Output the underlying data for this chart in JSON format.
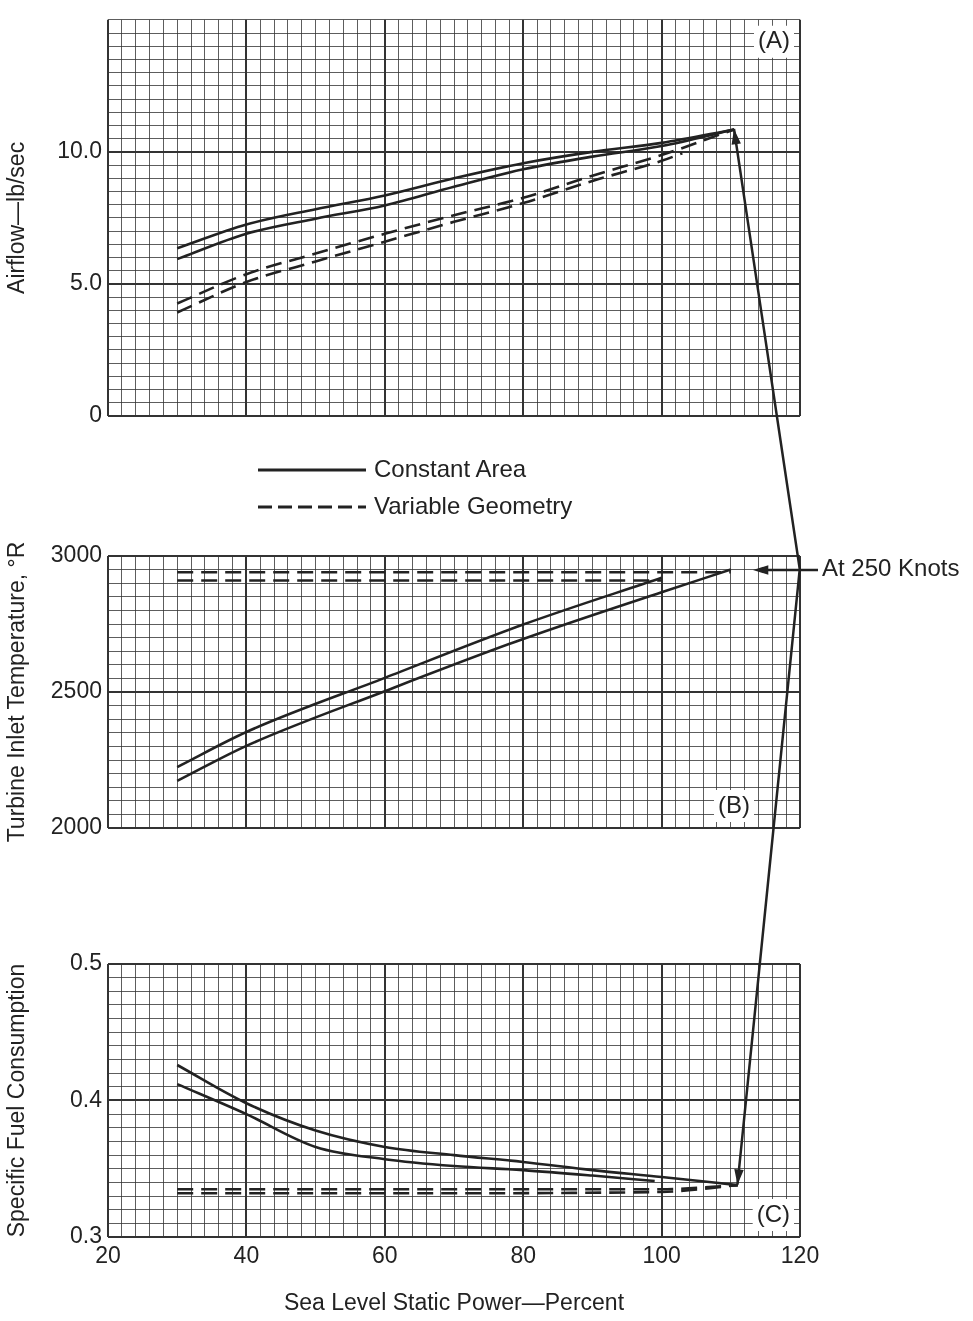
{
  "chart_data": [
    {
      "type": "line",
      "ylabel": "Airflow—lb/sec",
      "legend": "bottom",
      "tick_labels": "y",
      "grid": true,
      "line_style": "solid",
      "xlim": [
        20,
        120
      ],
      "xticks": [
        20,
        {
          "value": 22,
          "label": null
        },
        {
          "value": 24,
          "label": null
        },
        {
          "value": 26,
          "label": null
        },
        {
          "value": 28,
          "label": null
        },
        {
          "value": 30,
          "label": null
        },
        {
          "value": 32,
          "label": null
        },
        {
          "value": 34,
          "label": null
        },
        {
          "value": 36,
          "label": null
        },
        {
          "value": 38,
          "label": null
        },
        40,
        {
          "value": 42,
          "label": null
        },
        {
          "value": 44,
          "label": null
        },
        {
          "value": 46,
          "label": null
        },
        {
          "value": 48,
          "label": null
        },
        {
          "value": 50,
          "label": null
        },
        {
          "value": 52,
          "label": null
        },
        {
          "value": 54,
          "label": null
        },
        {
          "value": 56,
          "label": null
        },
        {
          "value": 58,
          "label": null
        },
        60,
        {
          "value": 62,
          "label": null
        },
        {
          "value": 64,
          "label": null
        },
        {
          "value": 66,
          "label": null
        },
        {
          "value": 68,
          "label": null
        },
        {
          "value": 70,
          "label": null
        },
        {
          "value": 72,
          "label": null
        },
        {
          "value": 74,
          "label": null
        },
        {
          "value": 76,
          "label": null
        },
        {
          "value": 78,
          "label": null
        },
        80,
        {
          "value": 82,
          "label": null
        },
        {
          "value": 84,
          "label": null
        },
        {
          "value": 86,
          "label": null
        },
        {
          "value": 88,
          "label": null
        },
        {
          "value": 90,
          "label": null
        },
        {
          "value": 92,
          "label": null
        },
        {
          "value": 94,
          "label": null
        },
        {
          "value": 96,
          "label": null
        },
        {
          "value": 98,
          "label": null
        },
        100,
        {
          "value": 102,
          "label": null
        },
        {
          "value": 104,
          "label": null
        },
        {
          "value": 106,
          "label": null
        },
        {
          "value": 108,
          "label": null
        },
        {
          "value": 110,
          "label": null
        },
        {
          "value": 112,
          "label": null
        },
        {
          "value": 114,
          "label": null
        },
        {
          "value": 116,
          "label": null
        },
        {
          "value": 118,
          "label": null
        },
        120
      ],
      "ylim": [
        0,
        15
      ],
      "yticks": [
        0,
        {
          "value": 0.5,
          "label": null
        },
        {
          "value": 1,
          "label": null
        },
        {
          "value": 1.5,
          "label": null
        },
        {
          "value": 2,
          "label": null
        },
        {
          "value": 2.5,
          "label": null
        },
        {
          "value": 3,
          "label": null
        },
        {
          "value": 3.5,
          "label": null
        },
        {
          "value": 4,
          "label": null
        },
        {
          "value": 4.5,
          "label": null
        },
        {
          "value": 5,
          "label": "5.0"
        },
        {
          "value": 5.5,
          "label": null
        },
        {
          "value": 6,
          "label": null
        },
        {
          "value": 6.5,
          "label": null
        },
        {
          "value": 7,
          "label": null
        },
        {
          "value": 7.5,
          "label": null
        },
        {
          "value": 8,
          "label": null
        },
        {
          "value": 8.5,
          "label": null
        },
        {
          "value": 9,
          "label": null
        },
        {
          "value": 9.5,
          "label": null
        },
        {
          "value": 10,
          "label": "10.0"
        },
        {
          "value": 10.5,
          "label": null
        },
        {
          "value": 11,
          "label": null
        },
        {
          "value": 11.5,
          "label": null
        },
        {
          "value": 12,
          "label": null
        },
        {
          "value": 12.5,
          "label": null
        },
        {
          "value": 13,
          "label": null
        },
        {
          "value": 13.5,
          "label": null
        },
        {
          "value": 14,
          "label": null
        },
        {
          "value": 14.5,
          "label": null
        },
        {
          "value": 15,
          "label": null
        }
      ],
      "annotations": [
        "(A)"
      ],
      "series": [
        {
          "name": "Constant Area",
          "color": "#222222",
          "x": [
            30,
            40,
            50,
            60,
            70,
            80,
            90,
            100,
            110.5
          ],
          "values": [
            6.35,
            7.25,
            7.83,
            8.35,
            9.0,
            9.57,
            10.0,
            10.34,
            10.85
          ]
        },
        {
          "color": "#222222",
          "x": [
            30,
            40,
            50,
            60,
            70,
            80,
            90,
            100,
            110.5
          ],
          "values": [
            5.94,
            6.9,
            7.47,
            7.97,
            8.68,
            9.34,
            9.82,
            10.22,
            10.85
          ]
        },
        {
          "name": "Variable Geometry",
          "color": "#222222",
          "line_style": "dashed",
          "x": [
            30,
            40,
            50,
            60,
            70,
            80,
            90,
            100,
            110.5
          ],
          "values": [
            4.26,
            5.37,
            6.15,
            6.9,
            7.6,
            8.26,
            9.1,
            9.88,
            10.85
          ]
        },
        {
          "color": "#222222",
          "line_style": "dashed",
          "x": [
            30,
            40,
            50,
            60,
            70,
            80,
            90,
            100,
            103
          ],
          "values": [
            3.92,
            5.07,
            5.85,
            6.6,
            7.35,
            8.06,
            8.9,
            9.66,
            9.95
          ]
        }
      ]
    },
    {
      "type": "line",
      "ylabel": "Turbine Inlet Temperature, °R",
      "tick_labels": "y",
      "grid": true,
      "line_style": "solid",
      "xlim": [
        20,
        120
      ],
      "xticks": [
        20,
        {
          "value": 22,
          "label": null
        },
        {
          "value": 24,
          "label": null
        },
        {
          "value": 26,
          "label": null
        },
        {
          "value": 28,
          "label": null
        },
        {
          "value": 30,
          "label": null
        },
        {
          "value": 32,
          "label": null
        },
        {
          "value": 34,
          "label": null
        },
        {
          "value": 36,
          "label": null
        },
        {
          "value": 38,
          "label": null
        },
        40,
        {
          "value": 42,
          "label": null
        },
        {
          "value": 44,
          "label": null
        },
        {
          "value": 46,
          "label": null
        },
        {
          "value": 48,
          "label": null
        },
        {
          "value": 50,
          "label": null
        },
        {
          "value": 52,
          "label": null
        },
        {
          "value": 54,
          "label": null
        },
        {
          "value": 56,
          "label": null
        },
        {
          "value": 58,
          "label": null
        },
        60,
        {
          "value": 62,
          "label": null
        },
        {
          "value": 64,
          "label": null
        },
        {
          "value": 66,
          "label": null
        },
        {
          "value": 68,
          "label": null
        },
        {
          "value": 70,
          "label": null
        },
        {
          "value": 72,
          "label": null
        },
        {
          "value": 74,
          "label": null
        },
        {
          "value": 76,
          "label": null
        },
        {
          "value": 78,
          "label": null
        },
        80,
        {
          "value": 82,
          "label": null
        },
        {
          "value": 84,
          "label": null
        },
        {
          "value": 86,
          "label": null
        },
        {
          "value": 88,
          "label": null
        },
        {
          "value": 90,
          "label": null
        },
        {
          "value": 92,
          "label": null
        },
        {
          "value": 94,
          "label": null
        },
        {
          "value": 96,
          "label": null
        },
        {
          "value": 98,
          "label": null
        },
        100,
        {
          "value": 102,
          "label": null
        },
        {
          "value": 104,
          "label": null
        },
        {
          "value": 106,
          "label": null
        },
        {
          "value": 108,
          "label": null
        },
        {
          "value": 110,
          "label": null
        },
        {
          "value": 112,
          "label": null
        },
        {
          "value": 114,
          "label": null
        },
        {
          "value": 116,
          "label": null
        },
        {
          "value": 118,
          "label": null
        },
        120
      ],
      "ylim": [
        2000,
        3000
      ],
      "yticks": [
        2000,
        {
          "value": 2050,
          "label": null
        },
        {
          "value": 2100,
          "label": null
        },
        {
          "value": 2150,
          "label": null
        },
        {
          "value": 2200,
          "label": null
        },
        {
          "value": 2250,
          "label": null
        },
        {
          "value": 2300,
          "label": null
        },
        {
          "value": 2350,
          "label": null
        },
        {
          "value": 2400,
          "label": null
        },
        {
          "value": 2450,
          "label": null
        },
        2500,
        {
          "value": 2550,
          "label": null
        },
        {
          "value": 2600,
          "label": null
        },
        {
          "value": 2650,
          "label": null
        },
        {
          "value": 2700,
          "label": null
        },
        {
          "value": 2750,
          "label": null
        },
        {
          "value": 2800,
          "label": null
        },
        {
          "value": 2850,
          "label": null
        },
        {
          "value": 2900,
          "label": null
        },
        {
          "value": 2950,
          "label": null
        },
        3000
      ],
      "annotations": [
        "(B)",
        "At 250 Knots"
      ],
      "series": [
        {
          "color": "#222222",
          "x": [
            30,
            40,
            60,
            80,
            100
          ],
          "values": [
            2224,
            2353,
            2552,
            2748,
            2920
          ]
        },
        {
          "color": "#222222",
          "x": [
            30,
            40,
            60,
            80,
            100,
            110
          ],
          "values": [
            2173,
            2302,
            2503,
            2695,
            2867,
            2950
          ]
        },
        {
          "color": "#222222",
          "line_style": "dashed",
          "x": [
            30,
            110
          ],
          "values": [
            2940,
            2940
          ]
        },
        {
          "color": "#222222",
          "line_style": "dashed",
          "x": [
            30,
            100
          ],
          "values": [
            2910,
            2910
          ]
        }
      ]
    },
    {
      "type": "line",
      "xlabel": "Sea Level Static Power—Percent",
      "ylabel": "Specific Fuel Consumption",
      "grid": true,
      "line_style": "solid",
      "xlim": [
        20,
        120
      ],
      "xticks": [
        20,
        {
          "value": 22,
          "label": null
        },
        {
          "value": 24,
          "label": null
        },
        {
          "value": 26,
          "label": null
        },
        {
          "value": 28,
          "label": null
        },
        {
          "value": 30,
          "label": null
        },
        {
          "value": 32,
          "label": null
        },
        {
          "value": 34,
          "label": null
        },
        {
          "value": 36,
          "label": null
        },
        {
          "value": 38,
          "label": null
        },
        40,
        {
          "value": 42,
          "label": null
        },
        {
          "value": 44,
          "label": null
        },
        {
          "value": 46,
          "label": null
        },
        {
          "value": 48,
          "label": null
        },
        {
          "value": 50,
          "label": null
        },
        {
          "value": 52,
          "label": null
        },
        {
          "value": 54,
          "label": null
        },
        {
          "value": 56,
          "label": null
        },
        {
          "value": 58,
          "label": null
        },
        60,
        {
          "value": 62,
          "label": null
        },
        {
          "value": 64,
          "label": null
        },
        {
          "value": 66,
          "label": null
        },
        {
          "value": 68,
          "label": null
        },
        {
          "value": 70,
          "label": null
        },
        {
          "value": 72,
          "label": null
        },
        {
          "value": 74,
          "label": null
        },
        {
          "value": 76,
          "label": null
        },
        {
          "value": 78,
          "label": null
        },
        80,
        {
          "value": 82,
          "label": null
        },
        {
          "value": 84,
          "label": null
        },
        {
          "value": 86,
          "label": null
        },
        {
          "value": 88,
          "label": null
        },
        {
          "value": 90,
          "label": null
        },
        {
          "value": 92,
          "label": null
        },
        {
          "value": 94,
          "label": null
        },
        {
          "value": 96,
          "label": null
        },
        {
          "value": 98,
          "label": null
        },
        100,
        {
          "value": 102,
          "label": null
        },
        {
          "value": 104,
          "label": null
        },
        {
          "value": 106,
          "label": null
        },
        {
          "value": 108,
          "label": null
        },
        {
          "value": 110,
          "label": null
        },
        {
          "value": 112,
          "label": null
        },
        {
          "value": 114,
          "label": null
        },
        {
          "value": 116,
          "label": null
        },
        {
          "value": 118,
          "label": null
        },
        120
      ],
      "ylim": [
        0.3,
        0.5
      ],
      "yticks": [
        0.3,
        {
          "value": 0.31,
          "label": null
        },
        {
          "value": 0.32,
          "label": null
        },
        {
          "value": 0.33,
          "label": null
        },
        {
          "value": 0.34,
          "label": null
        },
        {
          "value": 0.35,
          "label": null
        },
        {
          "value": 0.36,
          "label": null
        },
        {
          "value": 0.37,
          "label": null
        },
        {
          "value": 0.38,
          "label": null
        },
        {
          "value": 0.39,
          "label": null
        },
        0.4,
        {
          "value": 0.41,
          "label": null
        },
        {
          "value": 0.42,
          "label": null
        },
        {
          "value": 0.43,
          "label": null
        },
        {
          "value": 0.44,
          "label": null
        },
        {
          "value": 0.45,
          "label": null
        },
        {
          "value": 0.46,
          "label": null
        },
        {
          "value": 0.47,
          "label": null
        },
        {
          "value": 0.48,
          "label": null
        },
        {
          "value": 0.49,
          "label": null
        },
        0.5
      ],
      "annotations": [
        "(C)"
      ],
      "series": [
        {
          "color": "#222222",
          "x": [
            30,
            40,
            50,
            60,
            70,
            80,
            90,
            100,
            111
          ],
          "values": [
            0.426,
            0.398,
            0.378,
            0.366,
            0.36,
            0.355,
            0.349,
            0.344,
            0.338
          ]
        },
        {
          "color": "#222222",
          "x": [
            30,
            40,
            50,
            60,
            70,
            80,
            90,
            99
          ],
          "values": [
            0.412,
            0.39,
            0.366,
            0.357,
            0.352,
            0.349,
            0.345,
            0.341
          ]
        },
        {
          "color": "#222222",
          "line_style": "dashed",
          "x": [
            30,
            60,
            100,
            111
          ],
          "values": [
            0.335,
            0.335,
            0.335,
            0.338
          ]
        },
        {
          "color": "#222222",
          "line_style": "dashed",
          "x": [
            30,
            60,
            100,
            111
          ],
          "values": [
            0.332,
            0.332,
            0.333,
            0.338
          ]
        }
      ]
    }
  ]
}
